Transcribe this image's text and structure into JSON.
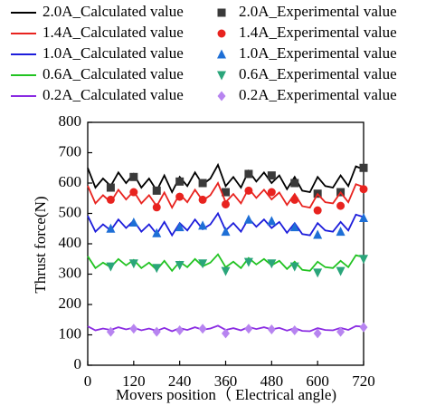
{
  "chart_data": {
    "type": "line",
    "xlabel": "Movers position（ Electrical angle)",
    "ylabel": "Thrust force(N)",
    "xlim": [
      0,
      720
    ],
    "xticks": [
      0,
      120,
      240,
      360,
      480,
      600,
      720
    ],
    "ylim": [
      0,
      800
    ],
    "yticks": [
      0,
      100,
      200,
      300,
      400,
      500,
      600,
      700,
      800
    ],
    "legend": "top",
    "series": [
      {
        "name": "2.0A_Calculated value",
        "kind": "line",
        "color": "#000000",
        "x": [
          0,
          20,
          40,
          60,
          80,
          100,
          120,
          140,
          160,
          180,
          200,
          220,
          240,
          260,
          280,
          300,
          320,
          340,
          360,
          380,
          400,
          420,
          440,
          460,
          480,
          500,
          520,
          540,
          560,
          580,
          600,
          620,
          640,
          660,
          680,
          700,
          720
        ],
        "values": [
          650,
          585,
          615,
          590,
          635,
          600,
          630,
          585,
          615,
          575,
          625,
          570,
          620,
          590,
          635,
          595,
          615,
          660,
          590,
          620,
          585,
          640,
          605,
          635,
          600,
          625,
          580,
          620,
          575,
          570,
          620,
          590,
          585,
          625,
          590,
          655,
          645
        ]
      },
      {
        "name": "2.0A_Experimental value",
        "kind": "scatter",
        "marker": "square",
        "color": "#3a3a3a",
        "x": [
          60,
          120,
          180,
          240,
          300,
          360,
          420,
          480,
          540,
          600,
          660,
          720
        ],
        "values": [
          585,
          620,
          575,
          605,
          600,
          570,
          630,
          625,
          600,
          565,
          570,
          650
        ]
      },
      {
        "name": "1.4A_Calculated value",
        "kind": "line",
        "color": "#e8231f",
        "x": [
          0,
          20,
          40,
          60,
          80,
          100,
          120,
          140,
          160,
          180,
          200,
          220,
          240,
          260,
          280,
          300,
          320,
          340,
          360,
          380,
          400,
          420,
          440,
          460,
          480,
          500,
          520,
          540,
          560,
          580,
          600,
          620,
          640,
          660,
          680,
          700,
          720
        ],
        "values": [
          591,
          533,
          560,
          537,
          578,
          546,
          573,
          533,
          560,
          524,
          569,
          519,
          564,
          537,
          578,
          542,
          560,
          600,
          537,
          564,
          533,
          582,
          551,
          578,
          546,
          569,
          528,
          564,
          524,
          519,
          564,
          537,
          533,
          569,
          537,
          596,
          587
        ]
      },
      {
        "name": "1.4A_Experimental value",
        "kind": "scatter",
        "marker": "circle",
        "color": "#e8231f",
        "x": [
          60,
          120,
          180,
          240,
          300,
          360,
          420,
          480,
          540,
          600,
          660,
          720
        ],
        "values": [
          545,
          570,
          520,
          555,
          545,
          530,
          575,
          570,
          545,
          510,
          525,
          580
        ]
      },
      {
        "name": "1.0A_Calculated value",
        "kind": "line",
        "color": "#1d1ddb",
        "x": [
          0,
          20,
          40,
          60,
          80,
          100,
          120,
          140,
          160,
          180,
          200,
          220,
          240,
          260,
          280,
          300,
          320,
          340,
          360,
          380,
          400,
          420,
          440,
          460,
          480,
          500,
          520,
          540,
          560,
          580,
          600,
          620,
          640,
          660,
          680,
          700,
          720
        ],
        "values": [
          492,
          440,
          464,
          444,
          480,
          452,
          476,
          440,
          464,
          432,
          472,
          428,
          468,
          444,
          480,
          448,
          464,
          500,
          444,
          468,
          440,
          484,
          456,
          480,
          452,
          472,
          436,
          468,
          432,
          428,
          468,
          444,
          440,
          472,
          444,
          496,
          488
        ]
      },
      {
        "name": "1.0A_Experimental value",
        "kind": "scatter",
        "marker": "triangle-up",
        "color": "#1e6fd6",
        "x": [
          60,
          120,
          180,
          240,
          300,
          360,
          420,
          480,
          540,
          600,
          660,
          720
        ],
        "values": [
          450,
          470,
          435,
          455,
          460,
          440,
          480,
          475,
          455,
          430,
          440,
          485
        ]
      },
      {
        "name": "0.6A_Calculated value",
        "kind": "line",
        "color": "#22c322",
        "x": [
          0,
          20,
          40,
          60,
          80,
          100,
          120,
          140,
          160,
          180,
          200,
          220,
          240,
          260,
          280,
          300,
          320,
          340,
          360,
          380,
          400,
          420,
          440,
          460,
          480,
          500,
          520,
          540,
          560,
          580,
          600,
          620,
          640,
          660,
          680,
          700,
          720
        ],
        "values": [
          359,
          320,
          338,
          323,
          350,
          329,
          347,
          320,
          338,
          314,
          344,
          311,
          341,
          323,
          350,
          326,
          338,
          365,
          323,
          341,
          320,
          353,
          332,
          350,
          329,
          344,
          317,
          341,
          314,
          311,
          341,
          323,
          320,
          344,
          323,
          362,
          356
        ]
      },
      {
        "name": "0.6A_Experimental value",
        "kind": "scatter",
        "marker": "triangle-down",
        "color": "#2aa57a",
        "x": [
          60,
          120,
          180,
          240,
          300,
          360,
          420,
          480,
          540,
          600,
          660,
          720
        ],
        "values": [
          325,
          335,
          320,
          330,
          335,
          310,
          340,
          335,
          325,
          305,
          310,
          350
        ]
      },
      {
        "name": "0.2A_Calculated value",
        "kind": "line",
        "color": "#8a2be2",
        "x": [
          0,
          20,
          40,
          60,
          80,
          100,
          120,
          140,
          160,
          180,
          200,
          220,
          240,
          260,
          280,
          300,
          320,
          340,
          360,
          380,
          400,
          420,
          440,
          460,
          480,
          500,
          520,
          540,
          560,
          580,
          600,
          620,
          640,
          660,
          680,
          700,
          720
        ],
        "values": [
          128,
          115,
          121,
          116,
          125,
          118,
          124,
          115,
          121,
          113,
          123,
          112,
          122,
          116,
          125,
          117,
          121,
          130,
          116,
          122,
          115,
          126,
          119,
          125,
          118,
          123,
          114,
          122,
          113,
          112,
          122,
          116,
          115,
          123,
          116,
          129,
          127
        ]
      },
      {
        "name": "0.2A_Experimental value",
        "kind": "scatter",
        "marker": "diamond",
        "color": "#b784f0",
        "x": [
          60,
          120,
          180,
          240,
          300,
          360,
          420,
          480,
          540,
          600,
          660,
          720
        ],
        "values": [
          110,
          120,
          110,
          115,
          120,
          105,
          120,
          118,
          115,
          105,
          110,
          125
        ]
      }
    ]
  }
}
